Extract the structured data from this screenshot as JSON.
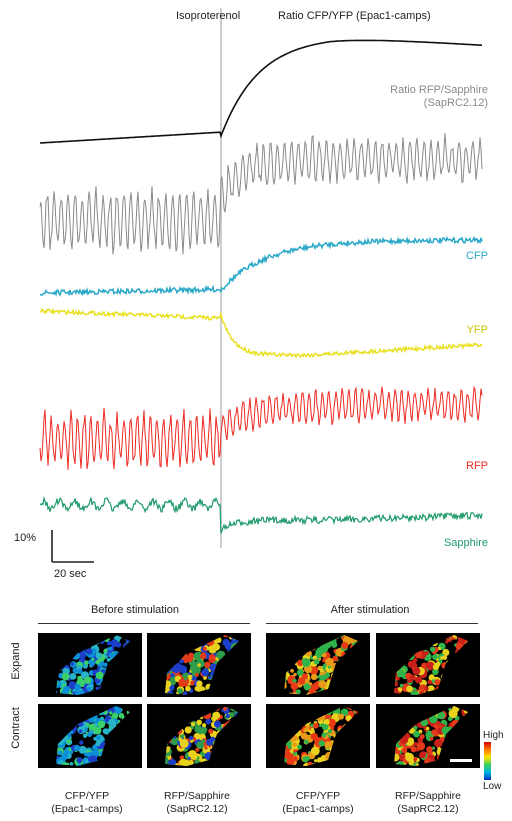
{
  "chart_data": {
    "type": "line",
    "title": "",
    "stimulus_label": "Isoproterenol",
    "series": [
      {
        "name": "Ratio CFP/YFP (Epac1-camps)",
        "color": "#111111",
        "shape": "rise-then-plateau"
      },
      {
        "name": "Ratio RFP/Sapphire (SapRC2.12)",
        "color": "#8a8a8a",
        "shape": "oscillating"
      },
      {
        "name": "CFP",
        "color": "#2aa8c8",
        "shape": "rise"
      },
      {
        "name": "YFP",
        "color": "#e8e020",
        "shape": "drop"
      },
      {
        "name": "RFP",
        "color": "#ee2a22",
        "shape": "oscillating"
      },
      {
        "name": "Sapphire",
        "color": "#1f9a6a",
        "shape": "drop-noisy"
      }
    ],
    "scale_bar": {
      "y": "10%",
      "x": "20 sec"
    }
  },
  "labels": {
    "isoproterenol": "Isoproterenol",
    "ratio_cfp_yfp": "Ratio CFP/YFP (Epac1-camps)",
    "ratio_rfp_sapphire_1": "Ratio RFP/Sapphire",
    "ratio_rfp_sapphire_2": "(SapRC2.12)",
    "cfp": "CFP",
    "yfp": "YFP",
    "rfp": "RFP",
    "sapphire": "Sapphire",
    "scale_y": "10%",
    "scale_x": "20 sec"
  },
  "images": {
    "before_header": "Before stimulation",
    "after_header": "After stimulation",
    "row_expand": "Expand",
    "row_contract": "Contract",
    "colorbar_high": "High",
    "colorbar_low": "Low",
    "captions": [
      {
        "line1": "CFP/YFP",
        "line2": "(Epac1-camps)"
      },
      {
        "line1": "RFP/Sapphire",
        "line2": "(SapRC2.12)"
      },
      {
        "line1": "CFP/YFP",
        "line2": "(Epac1-camps)"
      },
      {
        "line1": "RFP/Sapphire",
        "line2": "(SapRC2.12)"
      }
    ]
  },
  "colors": {
    "ratio_cfp_yfp": "#111111",
    "ratio_rfp_sapphire": "#8a8a8a",
    "cfp": "#2aa8c8",
    "yfp": "#c9c300",
    "rfp": "#ee2a22",
    "sapphire": "#1f9a6a"
  }
}
